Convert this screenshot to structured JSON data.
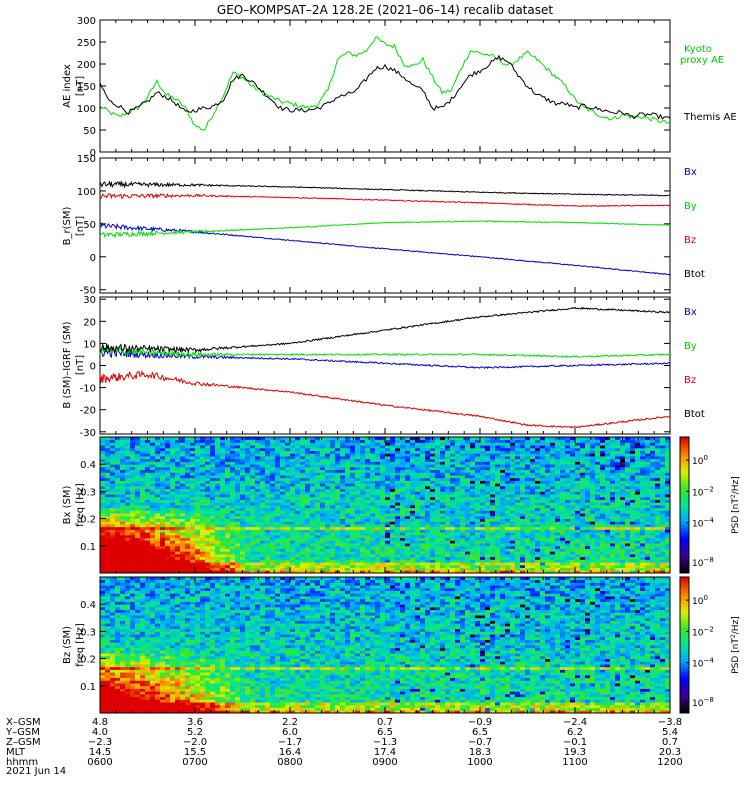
{
  "title": "GEO–KOMPSAT–2A 128.2E (2021–06–14) recalib dataset",
  "date_label": "2021 Jun 14",
  "colors": {
    "black": "#000000",
    "green": "#00e000",
    "red": "#e00000",
    "blue": "#0000cc",
    "label_blue": "#0000cc",
    "label_green": "#00cc00",
    "label_red": "#e00000"
  },
  "chart_data": [
    {
      "type": "line",
      "ylabel": "AE index [nT]",
      "ylim": [
        0,
        300
      ],
      "yticks": [
        0,
        50,
        100,
        150,
        200,
        250,
        300
      ],
      "xlim": [
        "0600",
        "1200"
      ],
      "series": [
        {
          "name": "Kyoto proxy AE",
          "color": "green",
          "x": [
            0,
            0.1,
            0.2,
            0.3,
            0.4,
            0.5,
            0.6,
            0.7,
            0.8,
            0.9,
            1.0,
            1.1,
            1.2,
            1.3,
            1.4,
            1.5,
            1.6,
            1.7,
            1.8,
            1.9,
            2.0,
            2.1,
            2.2,
            2.3,
            2.4,
            2.5,
            2.6,
            2.7,
            2.8,
            2.9,
            3.0,
            3.1,
            3.2,
            3.3,
            3.4,
            3.5,
            3.6,
            3.7,
            3.8,
            3.9,
            4.0,
            4.1,
            4.2,
            4.3,
            4.4,
            4.5,
            4.6,
            4.7,
            4.8,
            4.9,
            5.0,
            5.1,
            5.2,
            5.3,
            5.4,
            5.5,
            5.6,
            5.7,
            5.8,
            5.9,
            6.0
          ],
          "y": [
            105,
            90,
            80,
            90,
            100,
            125,
            160,
            130,
            120,
            100,
            60,
            50,
            90,
            130,
            180,
            170,
            150,
            135,
            125,
            115,
            110,
            105,
            100,
            110,
            140,
            210,
            225,
            220,
            230,
            260,
            245,
            240,
            200,
            195,
            210,
            170,
            135,
            140,
            190,
            230,
            225,
            220,
            210,
            195,
            210,
            225,
            210,
            190,
            170,
            150,
            120,
            100,
            90,
            80,
            75,
            85,
            80,
            80,
            75,
            70,
            65
          ]
        },
        {
          "name": "Themis AE",
          "color": "black",
          "x": [
            0,
            0.1,
            0.2,
            0.3,
            0.4,
            0.5,
            0.6,
            0.7,
            0.8,
            0.9,
            1.0,
            1.1,
            1.2,
            1.3,
            1.4,
            1.5,
            1.6,
            1.7,
            1.8,
            1.9,
            2.0,
            2.1,
            2.2,
            2.3,
            2.4,
            2.5,
            2.6,
            2.7,
            2.8,
            2.9,
            3.0,
            3.1,
            3.2,
            3.3,
            3.4,
            3.5,
            3.6,
            3.7,
            3.8,
            3.9,
            4.0,
            4.1,
            4.2,
            4.3,
            4.4,
            4.5,
            4.6,
            4.7,
            4.8,
            4.9,
            5.0,
            5.1,
            5.2,
            5.3,
            5.4,
            5.5,
            5.6,
            5.7,
            5.8,
            5.9,
            6.0
          ],
          "y": [
            155,
            115,
            105,
            90,
            100,
            115,
            135,
            125,
            110,
            90,
            95,
            100,
            105,
            120,
            165,
            175,
            160,
            140,
            120,
            100,
            95,
            95,
            95,
            100,
            110,
            125,
            130,
            140,
            165,
            190,
            195,
            185,
            170,
            150,
            140,
            100,
            100,
            120,
            150,
            175,
            185,
            200,
            215,
            205,
            175,
            150,
            130,
            120,
            110,
            110,
            100,
            105,
            100,
            95,
            90,
            90,
            80,
            85,
            85,
            80,
            75
          ]
        }
      ]
    },
    {
      "type": "line",
      "ylabel": "B_r(SM) [nT]",
      "ylim": [
        -55,
        150
      ],
      "yticks": [
        -50,
        0,
        50,
        100,
        150
      ],
      "xlim": [
        "0600",
        "1200"
      ],
      "series": [
        {
          "name": "Bx",
          "color": "blue",
          "x": [
            0,
            1,
            2,
            3,
            4,
            5,
            6
          ],
          "y": [
            47,
            38,
            25,
            12,
            0,
            -13,
            -27
          ]
        },
        {
          "name": "By",
          "color": "green",
          "x": [
            0,
            1,
            2,
            3,
            4,
            5,
            6
          ],
          "y": [
            33,
            38,
            44,
            52,
            54,
            52,
            48
          ]
        },
        {
          "name": "Bz",
          "color": "red",
          "x": [
            0,
            1,
            2,
            3,
            4,
            5,
            6
          ],
          "y": [
            92,
            93,
            90,
            86,
            82,
            77,
            78
          ]
        },
        {
          "name": "Btot",
          "color": "black",
          "x": [
            0,
            1,
            2,
            3,
            4,
            5,
            6
          ],
          "y": [
            110,
            109,
            106,
            102,
            98,
            95,
            93
          ]
        }
      ]
    },
    {
      "type": "line",
      "ylabel": "B (SM)–IGRF (SM) [nT]",
      "ylim": [
        -31,
        31
      ],
      "yticks": [
        -30,
        -20,
        -10,
        0,
        10,
        20,
        30
      ],
      "xlim": [
        "0600",
        "1200"
      ],
      "series": [
        {
          "name": "Bx",
          "color": "blue",
          "x": [
            0,
            1,
            2,
            3,
            4,
            5,
            6
          ],
          "y": [
            6,
            4,
            3,
            1,
            -1,
            0,
            1
          ]
        },
        {
          "name": "By",
          "color": "green",
          "x": [
            0,
            1,
            2,
            3,
            4,
            5,
            6
          ],
          "y": [
            7,
            5,
            5,
            5,
            5,
            4,
            5
          ]
        },
        {
          "name": "Bz",
          "color": "red",
          "x": [
            0,
            0.5,
            1,
            2,
            3,
            4,
            4.5,
            5,
            6
          ],
          "y": [
            -6,
            -4,
            -8,
            -12,
            -18,
            -23,
            -27,
            -28,
            -23
          ]
        },
        {
          "name": "Btot",
          "color": "black",
          "x": [
            0,
            1,
            2,
            3,
            4,
            5,
            6
          ],
          "y": [
            8,
            7,
            10,
            16,
            22,
            26,
            24
          ]
        }
      ]
    },
    {
      "type": "heatmap",
      "ylabel": "Bx (SM) freq [Hz]",
      "ylim": [
        0,
        0.5
      ],
      "yticks": [
        0.1,
        0.2,
        0.3,
        0.4
      ],
      "colorbar_label": "PSD [nT^2/Hz]",
      "colorbar_ticks": [
        "10^0",
        "10^-2",
        "10^-4",
        "10^-8"
      ],
      "colorbar_range": [
        "10^-8",
        "10^1"
      ]
    },
    {
      "type": "heatmap",
      "ylabel": "Bz (SM) freq [Hz]",
      "ylim": [
        0,
        0.5
      ],
      "yticks": [
        0.1,
        0.2,
        0.3,
        0.4
      ],
      "colorbar_label": "PSD [nT^2/Hz]",
      "colorbar_ticks": [
        "10^0",
        "10^-2",
        "10^-4",
        "10^-8"
      ],
      "colorbar_range": [
        "10^-8",
        "10^1"
      ]
    }
  ],
  "axis_rows": [
    {
      "label": "X–GSM",
      "values": [
        "4.8",
        "3.6",
        "2.2",
        "0.7",
        "−0.9",
        "−2.4",
        "−3.8"
      ]
    },
    {
      "label": "Y–GSM",
      "values": [
        "4.0",
        "5.2",
        "6.0",
        "6.5",
        "6.5",
        "6.2",
        "5.4"
      ]
    },
    {
      "label": "Z–GSM",
      "values": [
        "−2.3",
        "−2.0",
        "−1.7",
        "−1.3",
        "−0.7",
        "−0.1",
        "0.7"
      ]
    },
    {
      "label": "MLT",
      "values": [
        "14.5",
        "15.5",
        "16.4",
        "17.4",
        "18.3",
        "19.3",
        "20.3"
      ]
    },
    {
      "label": "hhmm",
      "values": [
        "0600",
        "0700",
        "0800",
        "0900",
        "1000",
        "1100",
        "1200"
      ]
    }
  ]
}
